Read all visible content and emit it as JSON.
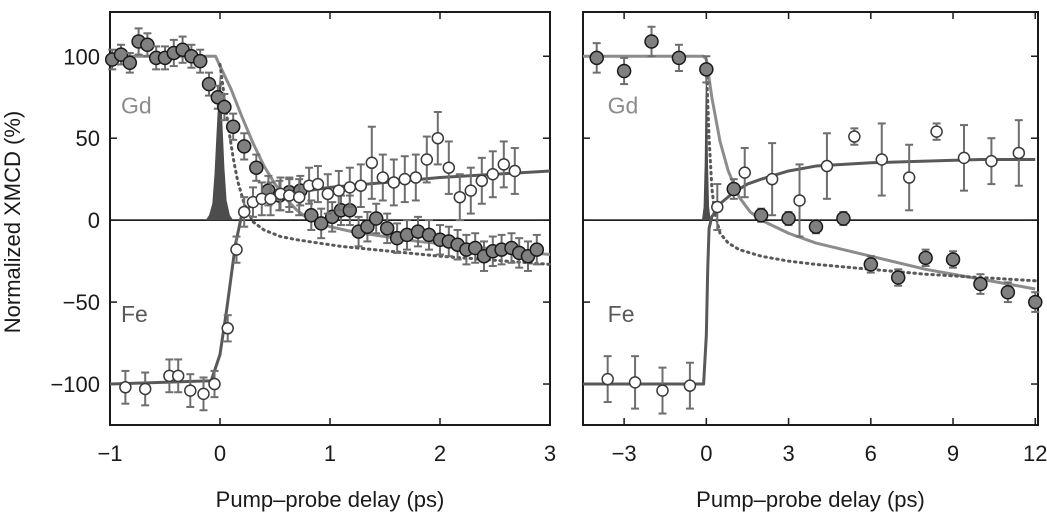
{
  "figure": {
    "ylabel": "Normalized XMCD (%)",
    "xlabel": "Pump–probe delay (ps)"
  },
  "chart_data": [
    {
      "type": "scatter",
      "panel": "left",
      "xlabel": "Pump–probe delay (ps)",
      "ylabel": "Normalized XMCD (%)",
      "xlim": [
        -1,
        3
      ],
      "ylim": [
        -125,
        127
      ],
      "xticks": [
        -1,
        0,
        1,
        2,
        3
      ],
      "xtick_labels": [
        "−1",
        "0",
        "1",
        "2",
        "3"
      ],
      "yticks": [
        -100,
        -50,
        0,
        50,
        100
      ],
      "ytick_labels": [
        "−100",
        "−50",
        "0",
        "50",
        "100"
      ],
      "grid": false,
      "annotations": [
        {
          "text": "Gd",
          "x": -0.9,
          "y": 65,
          "color": "#8c8c8c"
        },
        {
          "text": "Fe",
          "x": -0.9,
          "y": -62,
          "color": "#595959"
        }
      ],
      "series": [
        {
          "marker": "filled-circle",
          "color": "#808080",
          "x": [
            -0.98,
            -0.9,
            -0.82,
            -0.74,
            -0.66,
            -0.58,
            -0.5,
            -0.42,
            -0.34,
            -0.26,
            -0.18,
            -0.1,
            -0.02,
            0.04,
            0.12,
            0.22,
            0.33,
            0.44,
            0.54,
            0.63,
            0.73,
            0.83,
            0.92,
            1.02,
            1.1,
            1.18,
            1.26,
            1.34,
            1.42,
            1.52,
            1.61,
            1.7,
            1.8,
            1.9,
            2.0,
            2.08,
            2.16,
            2.24,
            2.32,
            2.4,
            2.48,
            2.56,
            2.65,
            2.72,
            2.8,
            2.88
          ],
          "y": [
            98,
            101,
            96,
            109,
            107,
            99,
            99,
            102,
            104,
            100,
            97,
            83,
            75,
            69,
            57,
            45,
            32,
            18,
            15,
            17,
            18,
            3,
            -2,
            2,
            6,
            6,
            -7,
            -4,
            1,
            -5,
            -11,
            -9,
            -7,
            -9,
            -12,
            -13,
            -15,
            -18,
            -17,
            -22,
            -19,
            -18,
            -17,
            -20,
            -22,
            -18
          ],
          "err": [
            6,
            6,
            6,
            8,
            7,
            7,
            7,
            8,
            8,
            7,
            7,
            7,
            7,
            8,
            8,
            8,
            8,
            9,
            9,
            9,
            9,
            9,
            9,
            9,
            9,
            9,
            9,
            9,
            9,
            9,
            9,
            9,
            9,
            9,
            9,
            9,
            9,
            9,
            9,
            9,
            9,
            9,
            9,
            9,
            9,
            9
          ]
        },
        {
          "marker": "open-circle",
          "color": "#595959",
          "x": [
            -0.86,
            -0.68,
            -0.46,
            -0.38,
            -0.27,
            -0.15,
            -0.05,
            0.07,
            0.15,
            0.22,
            0.3,
            0.38,
            0.46,
            0.55,
            0.63,
            0.72,
            0.81,
            0.89,
            0.98,
            1.08,
            1.18,
            1.28,
            1.38,
            1.48,
            1.58,
            1.68,
            1.78,
            1.88,
            1.98,
            2.08,
            2.18,
            2.28,
            2.38,
            2.48,
            2.58,
            2.68
          ],
          "y": [
            -102,
            -103,
            -95,
            -95,
            -104,
            -106,
            -100,
            -66,
            -18,
            5,
            11,
            13,
            13,
            16,
            15,
            14,
            21,
            22,
            16,
            18,
            20,
            21,
            35,
            26,
            23,
            25,
            26,
            37,
            50,
            32,
            14,
            18,
            24,
            28,
            34,
            30
          ],
          "err": [
            10,
            10,
            10,
            10,
            10,
            10,
            8,
            8,
            8,
            9,
            9,
            10,
            10,
            10,
            10,
            11,
            11,
            11,
            12,
            12,
            12,
            13,
            22,
            14,
            14,
            14,
            14,
            14,
            16,
            16,
            14,
            14,
            14,
            14,
            14,
            14
          ]
        },
        {
          "style": "line",
          "color": "#8c8c8c",
          "x": [
            -1,
            -0.04,
            0,
            0.1,
            0.2,
            0.3,
            0.4,
            0.5,
            0.6,
            0.7,
            0.8,
            1.0,
            1.2,
            1.5,
            1.8,
            2.1,
            2.4,
            2.7,
            3.0
          ],
          "y": [
            100,
            100,
            94,
            80,
            63,
            47,
            33,
            22,
            13,
            6,
            1,
            -4,
            -7,
            -10,
            -13,
            -15,
            -17,
            -19,
            -21
          ]
        },
        {
          "style": "line",
          "color": "#595959",
          "x": [
            -1,
            -0.08,
            0,
            0.06,
            0.1,
            0.14,
            0.2,
            0.3,
            0.4,
            0.6,
            0.8,
            1.0,
            1.5,
            2.0,
            2.5,
            3.0
          ],
          "y": [
            -100,
            -98,
            -82,
            -55,
            -35,
            -15,
            4,
            10,
            13,
            16,
            18,
            20,
            23,
            26,
            28,
            30
          ]
        },
        {
          "style": "dotted",
          "color": "#595959",
          "x": [
            0,
            0.04,
            0.08,
            0.12,
            0.16,
            0.22,
            0.3,
            0.4,
            0.55,
            0.7,
            0.9,
            1.1,
            1.4,
            1.7,
            2.0,
            2.4,
            2.8,
            3.0
          ],
          "y": [
            95,
            75,
            55,
            38,
            24,
            10,
            -1,
            -6,
            -10,
            -12,
            -14,
            -16,
            -18,
            -20,
            -22,
            -24,
            -26,
            -27
          ]
        },
        {
          "style": "filled-pulse",
          "color": "#4d4d4d",
          "x": [
            -0.13,
            -0.1,
            -0.07,
            -0.05,
            -0.03,
            -0.01,
            0.0,
            0.01,
            0.02,
            0.04,
            0.06,
            0.09,
            0.12
          ],
          "y": [
            0,
            3,
            10,
            28,
            55,
            80,
            90,
            82,
            62,
            32,
            12,
            3,
            0
          ]
        }
      ]
    },
    {
      "type": "scatter",
      "panel": "right",
      "xlabel": "Pump–probe delay (ps)",
      "ylim": [
        -125,
        127
      ],
      "xlim": [
        -4.5,
        12.1
      ],
      "xticks": [
        -3,
        0,
        3,
        6,
        9,
        12
      ],
      "xtick_labels": [
        "−3",
        "0",
        "3",
        "6",
        "9",
        "12"
      ],
      "yticks": [
        -100,
        -50,
        0,
        50,
        100
      ],
      "grid": false,
      "annotations": [
        {
          "text": "Gd",
          "x": -3.6,
          "y": 65,
          "color": "#8c8c8c"
        },
        {
          "text": "Fe",
          "x": -3.6,
          "y": -62,
          "color": "#595959"
        }
      ],
      "series": [
        {
          "marker": "filled-circle",
          "color": "#808080",
          "x": [
            -4,
            -3,
            -2,
            -1,
            0,
            1,
            2,
            3,
            4,
            5,
            6,
            7,
            8,
            9,
            10,
            11,
            12
          ],
          "y": [
            99,
            91,
            109,
            99,
            92,
            19,
            3,
            1,
            -4,
            1,
            -27,
            -35,
            -23,
            -24,
            -39,
            -44,
            -50
          ],
          "err": [
            9,
            8,
            9,
            8,
            8,
            6,
            4,
            4,
            4,
            4,
            5,
            5,
            5,
            5,
            6,
            6,
            6
          ]
        },
        {
          "marker": "open-circle",
          "color": "#595959",
          "x": [
            -3.6,
            -2.6,
            -1.6,
            -0.6,
            0.4,
            1.4,
            2.4,
            3.4,
            4.4,
            5.4,
            6.4,
            7.4,
            8.4,
            9.4,
            10.4,
            11.4
          ],
          "y": [
            -97,
            -99,
            -104,
            -101,
            8,
            29,
            25,
            12,
            33,
            51,
            37,
            26,
            54,
            38,
            36,
            41
          ],
          "err": [
            14,
            16,
            14,
            14,
            14,
            15,
            22,
            22,
            20,
            5,
            22,
            20,
            5,
            20,
            14,
            20
          ]
        },
        {
          "style": "line",
          "color": "#8c8c8c",
          "x": [
            -4.5,
            -0.1,
            0,
            0.2,
            0.5,
            0.8,
            1.2,
            1.6,
            2.0,
            3.0,
            4.0,
            6.0,
            8.0,
            10.0,
            12.0
          ],
          "y": [
            100,
            100,
            98,
            75,
            48,
            30,
            14,
            5,
            0,
            -8,
            -14,
            -22,
            -30,
            -36,
            -42
          ]
        },
        {
          "style": "line",
          "color": "#595959",
          "x": [
            -4.5,
            -0.1,
            0,
            0.05,
            0.1,
            0.2,
            0.5,
            1.0,
            1.5,
            2.0,
            3.0,
            4.0,
            6.0,
            8.0,
            10.0,
            12.0
          ],
          "y": [
            -100,
            -100,
            -70,
            -30,
            -5,
            2,
            10,
            17,
            22,
            25,
            30,
            33,
            35,
            36,
            37,
            37
          ]
        },
        {
          "style": "dotted",
          "color": "#595959",
          "x": [
            0,
            0.1,
            0.2,
            0.3,
            0.5,
            0.8,
            1.2,
            2.0,
            3.0,
            4.0,
            6.0,
            8.0,
            10.0,
            12.0
          ],
          "y": [
            95,
            50,
            20,
            5,
            -8,
            -14,
            -18,
            -22,
            -25,
            -27,
            -30,
            -33,
            -35,
            -37
          ]
        },
        {
          "style": "filled-pulse",
          "color": "#4d4d4d",
          "x": [
            -0.16,
            -0.1,
            -0.06,
            -0.03,
            0.0,
            0.03,
            0.06,
            0.1,
            0.16
          ],
          "y": [
            0,
            8,
            35,
            75,
            100,
            75,
            35,
            8,
            0
          ]
        }
      ]
    }
  ]
}
